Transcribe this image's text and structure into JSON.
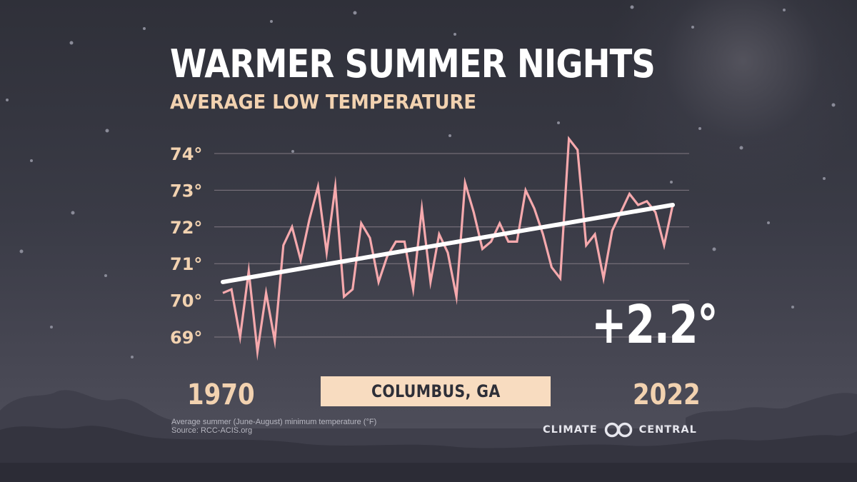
{
  "header": {
    "title": "WARMER SUMMER NIGHTS",
    "subtitle": "AVERAGE LOW TEMPERATURE"
  },
  "location": "COLUMBUS, GA",
  "change_label": "+2.2°",
  "years": {
    "start": "1970",
    "end": "2022"
  },
  "footer": {
    "note": "Average summer (June-August) minimum temperature (°F)",
    "source": "Source: RCC-ACIS.org",
    "brand_left": "CLIMATE",
    "brand_right": "CENTRAL"
  },
  "icons": {
    "moon": "crescent-moon-icon",
    "logo": "climate-central-logo-icon"
  },
  "colors": {
    "series_line": "#f6a9ad",
    "trend_line": "#ffffff",
    "accent": "#f2d2b0",
    "location_box": "#f8dcc0",
    "grid": "#9a8e95"
  },
  "chart_data": {
    "type": "line",
    "title": "WARMER SUMMER NIGHTS",
    "subtitle": "AVERAGE LOW TEMPERATURE",
    "xlabel": "",
    "ylabel": "",
    "x_range": [
      1970,
      2022
    ],
    "ylim": [
      68.5,
      74.5
    ],
    "yticks": [
      69,
      70,
      71,
      72,
      73,
      74
    ],
    "ytick_labels": [
      "69°",
      "70°",
      "71°",
      "72°",
      "73°",
      "74°"
    ],
    "grid": true,
    "x": [
      1970,
      1971,
      1972,
      1973,
      1974,
      1975,
      1976,
      1977,
      1978,
      1979,
      1980,
      1981,
      1982,
      1983,
      1984,
      1985,
      1986,
      1987,
      1988,
      1989,
      1990,
      1991,
      1992,
      1993,
      1994,
      1995,
      1996,
      1997,
      1998,
      1999,
      2000,
      2001,
      2002,
      2003,
      2004,
      2005,
      2006,
      2007,
      2008,
      2009,
      2010,
      2011,
      2012,
      2013,
      2014,
      2015,
      2016,
      2017,
      2018,
      2019,
      2020,
      2021,
      2022
    ],
    "values": [
      70.2,
      70.3,
      69.0,
      70.8,
      68.6,
      70.2,
      68.9,
      71.5,
      72.0,
      71.1,
      72.2,
      73.1,
      71.3,
      73.1,
      70.1,
      70.3,
      72.1,
      71.7,
      70.5,
      71.2,
      71.6,
      71.6,
      70.3,
      72.5,
      70.5,
      71.8,
      71.3,
      70.1,
      73.2,
      72.4,
      71.4,
      71.6,
      72.1,
      71.6,
      71.6,
      73.0,
      72.5,
      71.8,
      70.9,
      70.6,
      74.4,
      74.1,
      71.5,
      71.8,
      70.6,
      71.9,
      72.4,
      72.9,
      72.6,
      72.7,
      72.4,
      71.5,
      72.6
    ],
    "trend": {
      "start": [
        1970,
        70.5
      ],
      "end": [
        2022,
        72.6
      ]
    }
  }
}
